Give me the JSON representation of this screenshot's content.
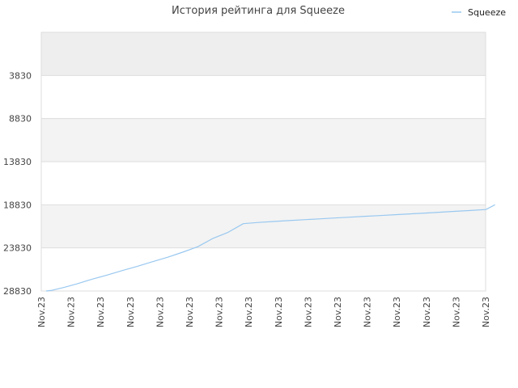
{
  "chart_data": {
    "type": "line",
    "title": "История рейтинга для Squeeze",
    "xlabel": "",
    "ylabel": "",
    "y_inverted": true,
    "ylim": [
      -1170,
      28830
    ],
    "y_ticks": [
      3830,
      8830,
      13830,
      18830,
      23830,
      28830
    ],
    "x_ticks": [
      "Nov.23",
      "Nov.23",
      "Nov.23",
      "Nov.23",
      "Nov.23",
      "Nov.23",
      "Nov.23",
      "Nov.23",
      "Nov.23",
      "Nov.23",
      "Nov.23",
      "Nov.23",
      "Nov.23",
      "Nov.23",
      "Nov.23",
      "Nov.23"
    ],
    "legend": {
      "position": "top-right"
    },
    "grid": true,
    "band_colors": [
      "#eeeeee",
      "#ffffff",
      "#f3f3f3",
      "#ffffff",
      "#f3f3f3",
      "#ffffff"
    ],
    "series": [
      {
        "name": "Squeeze",
        "color": "#99c8f0",
        "x": [
          0,
          0.2,
          0.6,
          1,
          1.5,
          2,
          2.5,
          3,
          3.5,
          4,
          4.5,
          5,
          5.5,
          6,
          6.5,
          7,
          7.5,
          8,
          8.5,
          9,
          9.5,
          10,
          10.5,
          11,
          11.5,
          12,
          12.5,
          13,
          13.5,
          14,
          14.5,
          14.8
        ],
        "y": [
          28830,
          28750,
          28400,
          28010,
          27480,
          26990,
          26470,
          25980,
          25440,
          24920,
          24330,
          23690,
          22730,
          22020,
          21020,
          20880,
          20770,
          20660,
          20560,
          20470,
          20360,
          20270,
          20170,
          20080,
          19980,
          19890,
          19790,
          19690,
          19590,
          19490,
          19380,
          18830
        ]
      }
    ]
  }
}
